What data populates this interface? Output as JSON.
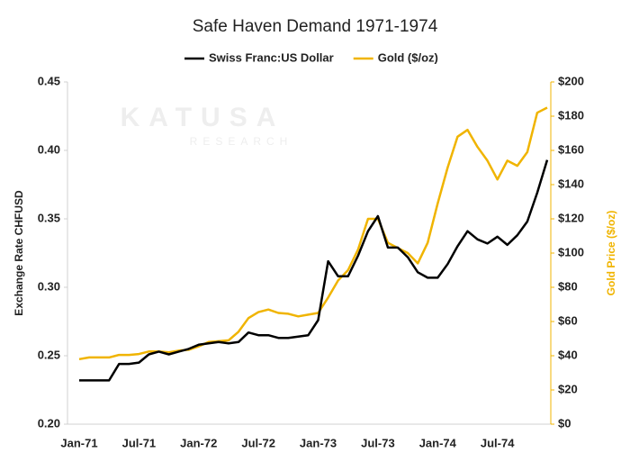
{
  "chart_data": {
    "type": "line",
    "title": "Safe Haven Demand 1971-1974",
    "watermark": "KATUSA",
    "watermark_sub": "RESEARCH",
    "categories": [
      "Jan-71",
      null,
      null,
      null,
      null,
      null,
      "Jul-71",
      null,
      null,
      null,
      null,
      null,
      "Jan-72",
      null,
      null,
      null,
      null,
      null,
      "Jul-72",
      null,
      null,
      null,
      null,
      null,
      "Jan-73",
      null,
      null,
      null,
      null,
      null,
      "Jul-73",
      null,
      null,
      null,
      null,
      null,
      "Jan-74",
      null,
      null,
      null,
      null,
      null,
      "Jul-74",
      null,
      null,
      null,
      null,
      null
    ],
    "y_label": "Exchange Rate CHFUSD",
    "y2_label": "Gold Price ($/oz)",
    "ylim": [
      0.2,
      0.45
    ],
    "yticks": [
      {
        "value": 0.2,
        "label": "0.20"
      },
      0.25,
      {
        "value": 0.3,
        "label": "0.30"
      },
      0.35,
      {
        "value": 0.4,
        "label": "0.40"
      },
      0.45
    ],
    "y2lim": [
      0,
      200
    ],
    "y2ticks": [
      {
        "value": 0,
        "label": "$0"
      },
      {
        "value": 20,
        "label": "$20"
      },
      {
        "value": 40,
        "label": "$40"
      },
      {
        "value": 60,
        "label": "$60"
      },
      {
        "value": 80,
        "label": "$80"
      },
      {
        "value": 100,
        "label": "$100"
      },
      {
        "value": 120,
        "label": "$120"
      },
      {
        "value": 140,
        "label": "$140"
      },
      {
        "value": 160,
        "label": "$160"
      },
      {
        "value": 180,
        "label": "$180"
      },
      {
        "value": 200,
        "label": "$200"
      }
    ],
    "series": [
      {
        "name": "Swiss Franc:US Dollar",
        "color": "#000000",
        "values": [
          0.232,
          0.232,
          0.232,
          0.232,
          0.244,
          0.244,
          0.245,
          0.251,
          0.253,
          0.251,
          0.253,
          0.255,
          0.258,
          0.259,
          0.26,
          0.259,
          0.26,
          0.267,
          0.265,
          0.265,
          0.263,
          0.263,
          0.264,
          0.265,
          0.276,
          0.319,
          0.308,
          0.308,
          0.323,
          0.341,
          0.352,
          0.329,
          0.329,
          0.322,
          0.311,
          0.307,
          0.307,
          0.317,
          0.33,
          0.341,
          0.335,
          0.332,
          0.337,
          0.331,
          0.338,
          0.348,
          0.369,
          0.393
        ]
      },
      {
        "name": "Gold ($/oz)",
        "color": "#f0b400",
        "axis": "y2",
        "values": [
          38,
          39,
          39,
          39,
          40.5,
          40.5,
          41,
          42.5,
          42.5,
          42,
          43,
          43.5,
          45.5,
          48,
          48.5,
          49,
          54,
          62,
          65.5,
          67,
          65,
          64.5,
          63,
          64,
          65,
          74,
          84,
          90,
          102,
          120,
          120,
          106,
          103,
          100,
          94,
          106,
          129,
          150,
          168,
          172,
          162,
          154,
          143,
          154,
          151,
          159,
          182,
          185
        ]
      }
    ]
  }
}
